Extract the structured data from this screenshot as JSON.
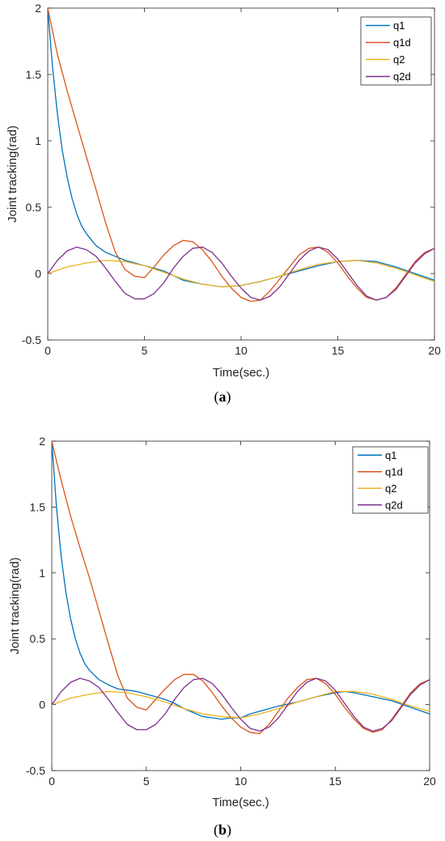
{
  "figures": [
    {
      "caption_prefix": "(",
      "caption_letter": "a",
      "caption_suffix": ")"
    },
    {
      "caption_prefix": "(",
      "caption_letter": "b",
      "caption_suffix": ")"
    }
  ],
  "chart_data": [
    {
      "type": "line",
      "title": "",
      "xlabel": "Time(sec.)",
      "ylabel": "Joint tracking(rad)",
      "xlim": [
        0,
        20
      ],
      "ylim": [
        -0.5,
        2
      ],
      "xticks": [
        0,
        5,
        10,
        15,
        20
      ],
      "xtick_labels": [
        "0",
        "5",
        "10",
        "15",
        "20"
      ],
      "yticks": [
        -0.5,
        0,
        0.5,
        1,
        1.5,
        2
      ],
      "ytick_labels": [
        "-0.5",
        "0",
        "0.5",
        "1",
        "1.5",
        "2"
      ],
      "grid": false,
      "legend_position": "top-right",
      "series": [
        {
          "name": "q1",
          "color": "#0072BD",
          "x": [
            0,
            0.25,
            0.5,
            0.75,
            1,
            1.25,
            1.5,
            1.75,
            2,
            2.5,
            3,
            3.5,
            4,
            4.5,
            5,
            5.5,
            6,
            7,
            8,
            9,
            10,
            11,
            12,
            13,
            14,
            15,
            16,
            17,
            18,
            19,
            20
          ],
          "values": [
            2.0,
            1.55,
            1.2,
            0.93,
            0.73,
            0.57,
            0.45,
            0.36,
            0.3,
            0.21,
            0.16,
            0.13,
            0.1,
            0.08,
            0.06,
            0.04,
            0.02,
            -0.05,
            -0.08,
            -0.1,
            -0.09,
            -0.06,
            -0.02,
            0.02,
            0.06,
            0.09,
            0.1,
            0.09,
            0.05,
            0.0,
            -0.05
          ]
        },
        {
          "name": "q1d",
          "color": "#D95319",
          "x": [
            0,
            0.5,
            1,
            1.5,
            2,
            2.5,
            3,
            3.5,
            4,
            4.5,
            5,
            5.5,
            6,
            6.5,
            7,
            7.5,
            8,
            8.5,
            9,
            9.5,
            10,
            10.5,
            11,
            11.5,
            12,
            12.5,
            13,
            13.5,
            14,
            14.5,
            15,
            15.5,
            16,
            16.5,
            17,
            17.5,
            18,
            18.5,
            19,
            19.5,
            20
          ],
          "values": [
            2.0,
            1.65,
            1.38,
            1.13,
            0.88,
            0.63,
            0.38,
            0.16,
            0.03,
            -0.02,
            -0.03,
            0.05,
            0.14,
            0.21,
            0.25,
            0.24,
            0.18,
            0.09,
            -0.02,
            -0.11,
            -0.18,
            -0.21,
            -0.2,
            -0.13,
            -0.04,
            0.05,
            0.14,
            0.19,
            0.2,
            0.16,
            0.08,
            -0.02,
            -0.11,
            -0.18,
            -0.2,
            -0.18,
            -0.11,
            -0.01,
            0.09,
            0.16,
            0.19
          ]
        },
        {
          "name": "q2",
          "color": "#EDB120",
          "x": [
            0,
            1,
            2,
            3,
            4,
            5,
            6,
            7,
            8,
            9,
            10,
            11,
            12,
            13,
            14,
            15,
            16,
            17,
            18,
            19,
            20
          ],
          "values": [
            0.0,
            0.05,
            0.08,
            0.1,
            0.09,
            0.06,
            0.01,
            -0.04,
            -0.08,
            -0.1,
            -0.09,
            -0.06,
            -0.02,
            0.03,
            0.07,
            0.09,
            0.1,
            0.08,
            0.04,
            -0.01,
            -0.06
          ]
        },
        {
          "name": "q2d",
          "color": "#7E2F8E",
          "x": [
            0,
            0.5,
            1,
            1.5,
            2,
            2.5,
            3,
            3.5,
            4,
            4.5,
            5,
            5.5,
            6,
            6.5,
            7,
            7.5,
            8,
            8.5,
            9,
            9.5,
            10,
            10.5,
            11,
            11.5,
            12,
            12.5,
            13,
            13.5,
            14,
            14.5,
            15,
            15.5,
            16,
            16.5,
            17,
            17.5,
            18,
            18.5,
            19,
            19.5,
            20
          ],
          "values": [
            0.0,
            0.1,
            0.17,
            0.2,
            0.18,
            0.13,
            0.04,
            -0.06,
            -0.15,
            -0.19,
            -0.19,
            -0.15,
            -0.07,
            0.04,
            0.13,
            0.19,
            0.2,
            0.16,
            0.08,
            -0.02,
            -0.11,
            -0.18,
            -0.2,
            -0.17,
            -0.1,
            0.0,
            0.1,
            0.17,
            0.2,
            0.18,
            0.11,
            0.01,
            -0.09,
            -0.17,
            -0.2,
            -0.18,
            -0.12,
            -0.02,
            0.08,
            0.15,
            0.19
          ]
        }
      ]
    },
    {
      "type": "line",
      "title": "",
      "xlabel": "Time(sec.)",
      "ylabel": "Joint tracking(rad)",
      "xlim": [
        0,
        20
      ],
      "ylim": [
        -0.5,
        2
      ],
      "xticks": [
        0,
        5,
        10,
        15,
        20
      ],
      "xtick_labels": [
        "0",
        "5",
        "10",
        "15",
        "20"
      ],
      "yticks": [
        -0.5,
        0,
        0.5,
        1,
        1.5,
        2
      ],
      "ytick_labels": [
        "-0.5",
        "0",
        "0.5",
        "1",
        "1.5",
        "2"
      ],
      "grid": false,
      "legend_position": "top-right",
      "series": [
        {
          "name": "q1",
          "color": "#0072BD",
          "x": [
            0,
            0.25,
            0.5,
            0.75,
            1,
            1.25,
            1.5,
            1.75,
            2,
            2.5,
            3,
            3.5,
            4,
            4.5,
            5,
            5.5,
            6,
            6.5,
            7,
            7.5,
            8,
            8.5,
            9,
            9.5,
            10,
            10.5,
            11,
            12,
            13,
            14,
            15,
            15.5,
            16,
            17,
            18,
            19,
            20
          ],
          "values": [
            2.0,
            1.5,
            1.12,
            0.85,
            0.65,
            0.5,
            0.39,
            0.31,
            0.26,
            0.19,
            0.15,
            0.12,
            0.11,
            0.1,
            0.08,
            0.06,
            0.04,
            0.01,
            -0.03,
            -0.06,
            -0.09,
            -0.1,
            -0.11,
            -0.1,
            -0.1,
            -0.07,
            -0.05,
            -0.01,
            0.02,
            0.06,
            0.09,
            0.1,
            0.09,
            0.06,
            0.03,
            -0.02,
            -0.07
          ]
        },
        {
          "name": "q1d",
          "color": "#D95319",
          "x": [
            0,
            0.5,
            1,
            1.5,
            2,
            2.5,
            3,
            3.5,
            4,
            4.5,
            5,
            5.5,
            6,
            6.5,
            7,
            7.5,
            8,
            8.5,
            9,
            9.5,
            10,
            10.5,
            11,
            11.5,
            12,
            12.5,
            13,
            13.5,
            14,
            14.5,
            15,
            15.5,
            16,
            16.5,
            17,
            17.5,
            18,
            18.5,
            19,
            19.5,
            20
          ],
          "values": [
            2.0,
            1.7,
            1.43,
            1.19,
            0.96,
            0.71,
            0.46,
            0.22,
            0.05,
            -0.02,
            -0.04,
            0.04,
            0.12,
            0.19,
            0.23,
            0.23,
            0.18,
            0.09,
            -0.01,
            -0.1,
            -0.17,
            -0.21,
            -0.22,
            -0.15,
            -0.05,
            0.05,
            0.13,
            0.19,
            0.2,
            0.16,
            0.08,
            -0.02,
            -0.11,
            -0.18,
            -0.21,
            -0.19,
            -0.11,
            -0.01,
            0.09,
            0.16,
            0.19
          ]
        },
        {
          "name": "q2",
          "color": "#EDB120",
          "x": [
            0,
            1,
            2,
            3,
            4,
            5,
            6,
            7,
            8,
            9,
            10,
            11,
            12,
            13,
            14,
            15,
            16,
            17,
            18,
            19,
            20
          ],
          "values": [
            0.0,
            0.05,
            0.08,
            0.1,
            0.09,
            0.06,
            0.02,
            -0.03,
            -0.07,
            -0.09,
            -0.1,
            -0.07,
            -0.03,
            0.02,
            0.06,
            0.1,
            0.1,
            0.08,
            0.04,
            -0.01,
            -0.05
          ]
        },
        {
          "name": "q2d",
          "color": "#7E2F8E",
          "x": [
            0,
            0.5,
            1,
            1.5,
            2,
            2.5,
            3,
            3.5,
            4,
            4.5,
            5,
            5.5,
            6,
            6.5,
            7,
            7.5,
            8,
            8.5,
            9,
            9.5,
            10,
            10.5,
            11,
            11.5,
            12,
            12.5,
            13,
            13.5,
            14,
            14.5,
            15,
            15.5,
            16,
            16.5,
            17,
            17.5,
            18,
            18.5,
            19,
            19.5,
            20
          ],
          "values": [
            0.0,
            0.1,
            0.17,
            0.2,
            0.18,
            0.13,
            0.04,
            -0.06,
            -0.15,
            -0.19,
            -0.19,
            -0.15,
            -0.07,
            0.04,
            0.13,
            0.19,
            0.2,
            0.16,
            0.08,
            -0.02,
            -0.11,
            -0.18,
            -0.2,
            -0.17,
            -0.1,
            0.0,
            0.1,
            0.17,
            0.2,
            0.18,
            0.11,
            0.01,
            -0.09,
            -0.17,
            -0.2,
            -0.18,
            -0.12,
            -0.02,
            0.08,
            0.15,
            0.19
          ]
        }
      ]
    }
  ]
}
